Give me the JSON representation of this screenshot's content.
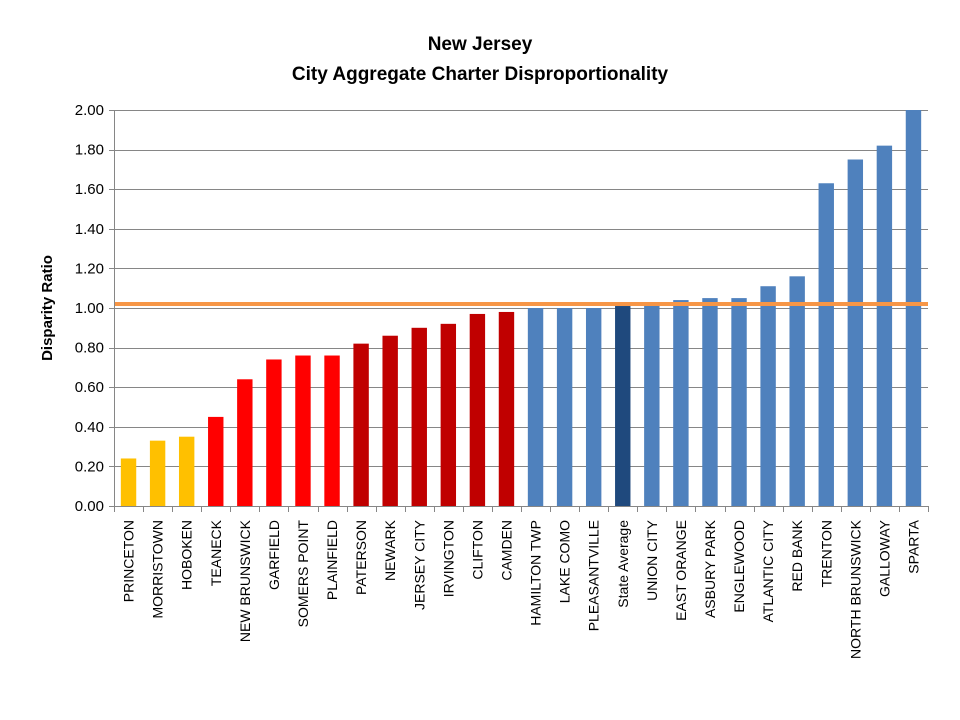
{
  "chart_data": {
    "type": "bar",
    "title_lines": [
      "New Jersey",
      "City Aggregate Charter Disproportionality"
    ],
    "xlabel": "",
    "ylabel": "Disparity  Ratio",
    "ylim": [
      0,
      2.0
    ],
    "ytick_step": 0.2,
    "ytick_labels": [
      "0.00",
      "0.20",
      "0.40",
      "0.60",
      "0.80",
      "1.00",
      "1.20",
      "1.40",
      "1.60",
      "1.80",
      "2.00"
    ],
    "grid": true,
    "reference_line": {
      "value": 1.02,
      "color": "#F79646"
    },
    "categories": [
      "PRINCETON",
      "MORRISTOWN",
      "HOBOKEN",
      "TEANECK",
      "NEW BRUNSWICK",
      "GARFIELD",
      "SOMERS POINT",
      "PLAINFIELD",
      "PATERSON",
      "NEWARK",
      "JERSEY CITY",
      "IRVINGTON",
      "CLIFTON",
      "CAMDEN",
      "HAMILTON TWP",
      "LAKE COMO",
      "PLEASANTVILLE",
      "State Average",
      "UNION CITY",
      "EAST ORANGE",
      "ASBURY PARK",
      "ENGLEWOOD",
      "ATLANTIC CITY",
      "RED BANK",
      "TRENTON",
      "NORTH BRUNSWICK",
      "GALLOWAY",
      "SPARTA"
    ],
    "values": [
      0.24,
      0.33,
      0.35,
      0.45,
      0.64,
      0.74,
      0.76,
      0.76,
      0.82,
      0.86,
      0.9,
      0.92,
      0.97,
      0.98,
      1.0,
      1.0,
      1.0,
      1.01,
      1.02,
      1.04,
      1.05,
      1.05,
      1.11,
      1.16,
      1.63,
      1.75,
      1.82,
      2.0
    ],
    "bar_colors": [
      "#FFC000",
      "#FFC000",
      "#FFC000",
      "#FF0000",
      "#FF0000",
      "#FF0000",
      "#FF0000",
      "#FF0000",
      "#C00000",
      "#C00000",
      "#C00000",
      "#C00000",
      "#C00000",
      "#C00000",
      "#4F81BD",
      "#4F81BD",
      "#4F81BD",
      "#1F497D",
      "#4F81BD",
      "#4F81BD",
      "#4F81BD",
      "#4F81BD",
      "#4F81BD",
      "#4F81BD",
      "#4F81BD",
      "#4F81BD",
      "#4F81BD",
      "#4F81BD"
    ]
  }
}
